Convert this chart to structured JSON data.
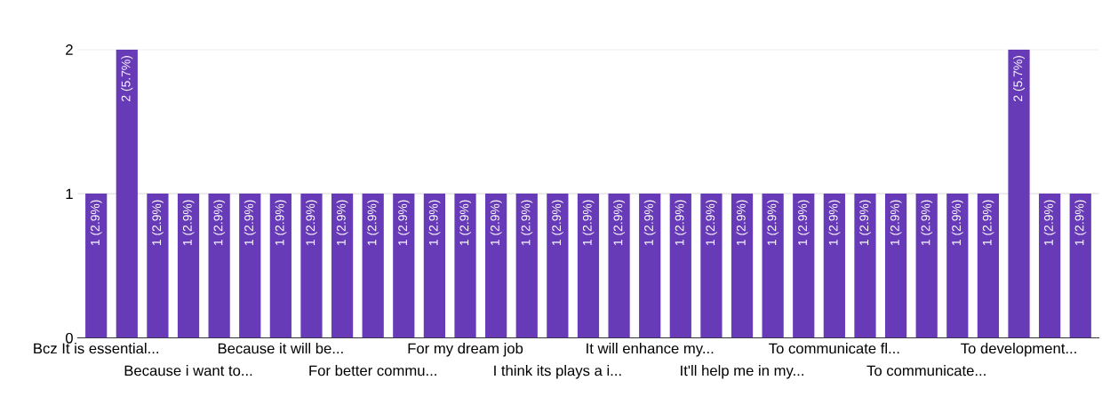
{
  "chart_data": {
    "type": "bar",
    "categories": [
      "Bcz It is essential...",
      null,
      null,
      "Because i want to...",
      null,
      null,
      "Because it will be...",
      null,
      null,
      "For better commu...",
      null,
      null,
      "For my dream job",
      null,
      null,
      "I think its plays a i...",
      null,
      null,
      "It will enhance my...",
      null,
      null,
      "It'll help me in my...",
      null,
      null,
      "To communicate fl...",
      null,
      null,
      "To communicate...",
      null,
      null,
      "To development...",
      null,
      null
    ],
    "values": [
      1,
      2,
      1,
      1,
      1,
      1,
      1,
      1,
      1,
      1,
      1,
      1,
      1,
      1,
      1,
      1,
      1,
      1,
      1,
      1,
      1,
      1,
      1,
      1,
      1,
      1,
      1,
      1,
      1,
      1,
      2,
      1,
      1
    ],
    "value_labels": [
      "1 (2.9%)",
      "2 (5.7%)",
      "1 (2.9%)",
      "1 (2.9%)",
      "1 (2.9%)",
      "1 (2.9%)",
      "1 (2.9%)",
      "1 (2.9%)",
      "1 (2.9%)",
      "1 (2.9%)",
      "1 (2.9%)",
      "1 (2.9%)",
      "1 (2.9%)",
      "1 (2.9%)",
      "1 (2.9%)",
      "1 (2.9%)",
      "1 (2.9%)",
      "1 (2.9%)",
      "1 (2.9%)",
      "1 (2.9%)",
      "1 (2.9%)",
      "1 (2.9%)",
      "1 (2.9%)",
      "1 (2.9%)",
      "1 (2.9%)",
      "1 (2.9%)",
      "1 (2.9%)",
      "1 (2.9%)",
      "1 (2.9%)",
      "1 (2.9%)",
      "2 (5.7%)",
      "1 (2.9%)",
      "1 (2.9%)"
    ],
    "color": "#673ab7",
    "ylim": [
      0,
      2
    ],
    "yticks": [
      0,
      1,
      2
    ],
    "grid": "y"
  }
}
